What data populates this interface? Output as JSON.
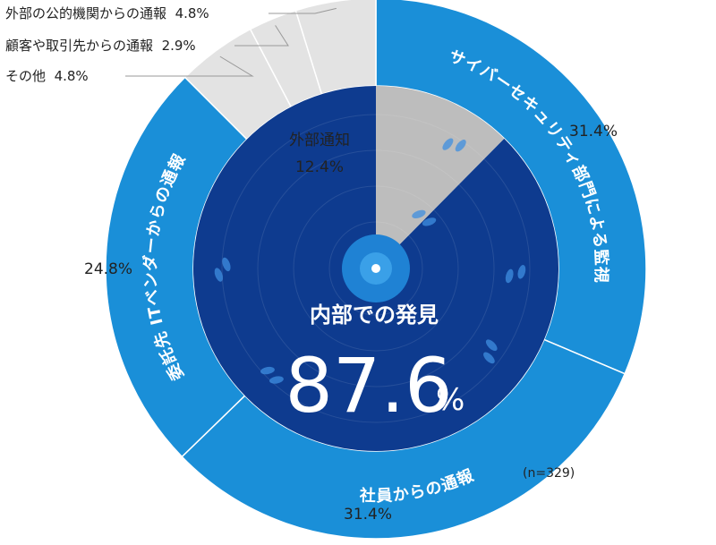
{
  "chart_data": {
    "type": "pie",
    "title": "",
    "note": "(n=329)",
    "inner": [
      {
        "label": "内部での発見",
        "value": 87.6,
        "unit": "%",
        "color": "#0e3b8f"
      },
      {
        "label": "外部通知",
        "value": 12.4,
        "unit": "%",
        "color": "#bdbdbd"
      }
    ],
    "outer": [
      {
        "label": "サイバーセキュリティ部門による監視",
        "value": 31.4,
        "pct_label": "31.4%",
        "color": "#1a8fd8"
      },
      {
        "label": "社員からの通報",
        "value": 31.4,
        "pct_label": "31.4%",
        "color": "#1a8fd8"
      },
      {
        "label": "委託先 ITベンダーからの通報",
        "value": 24.8,
        "pct_label": "24.8%",
        "color": "#1a8fd8"
      },
      {
        "label": "その他",
        "value": 4.8,
        "pct_label": "4.8%",
        "color": "#e3e3e3"
      },
      {
        "label": "顧客や取引先からの通報",
        "value": 2.9,
        "pct_label": "2.9%",
        "color": "#e3e3e3"
      },
      {
        "label": "外部の公的機関からの通報",
        "value": 4.8,
        "pct_label": "4.8%",
        "color": "#e3e3e3"
      }
    ],
    "center": {
      "label": "内部での発見",
      "value_text": "87.6",
      "unit": "%",
      "ext_label": "外部通知",
      "ext_value_text": "12.4%"
    }
  }
}
